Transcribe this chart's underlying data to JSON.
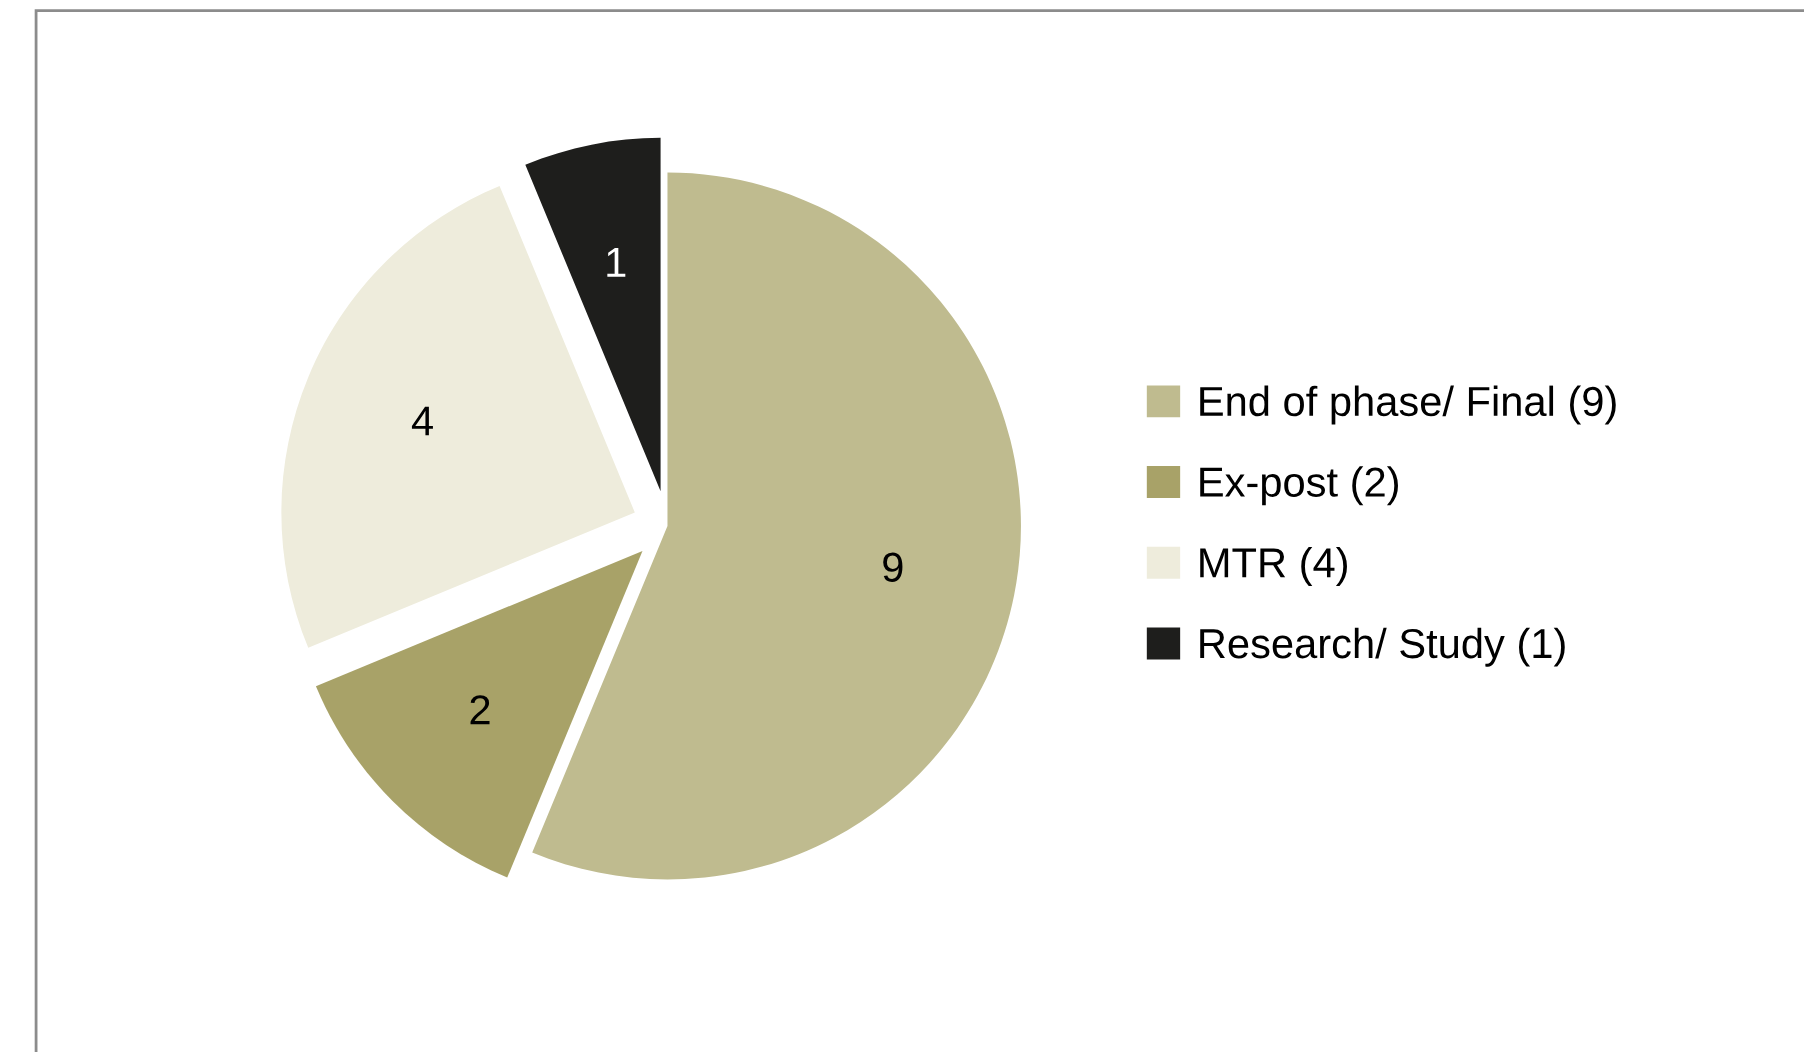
{
  "chart_data": {
    "type": "pie",
    "categories": [
      "End of phase/ Final (9)",
      "Ex-post (2)",
      "MTR (4)",
      "Research/ Study (1)"
    ],
    "values": [
      9,
      2,
      4,
      1
    ],
    "colors": [
      "#bfbb8f",
      "#a8a268",
      "#eeecdc",
      "#1e1e1c"
    ],
    "data_labels": true,
    "legend": "right"
  }
}
